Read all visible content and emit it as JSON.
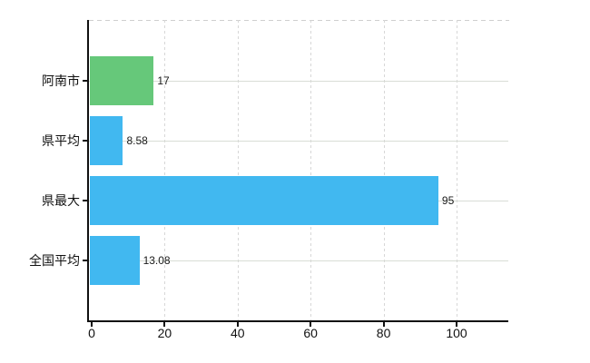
{
  "chart_data": {
    "type": "bar",
    "orientation": "horizontal",
    "title": "",
    "xlabel": "",
    "ylabel": "",
    "categories": [
      "阿南市",
      "県平均",
      "県最大",
      "全国平均"
    ],
    "values": [
      17,
      8.58,
      95,
      13.08
    ],
    "value_labels": [
      "17",
      "8.58",
      "95",
      "13.08"
    ],
    "bar_colors": [
      "#66c87a",
      "#41b8f0",
      "#41b8f0",
      "#41b8f0"
    ],
    "x_ticks": [
      0,
      20,
      40,
      60,
      80,
      100
    ],
    "x_tick_labels": [
      "0",
      "20",
      "40",
      "60",
      "80",
      "100"
    ],
    "xlim": [
      0,
      114
    ],
    "grid": {
      "vertical": "dashed",
      "horizontal": "solid",
      "top_border": "dashed"
    },
    "legend": "none"
  },
  "colors": {
    "background": "#ffffff",
    "axis": "#111111",
    "gridline": "#d9d9d9",
    "tick_text": "#111111",
    "value_text": "#1a1a1a",
    "bar_blue": "#41b8f0",
    "bar_green": "#66c87a"
  }
}
